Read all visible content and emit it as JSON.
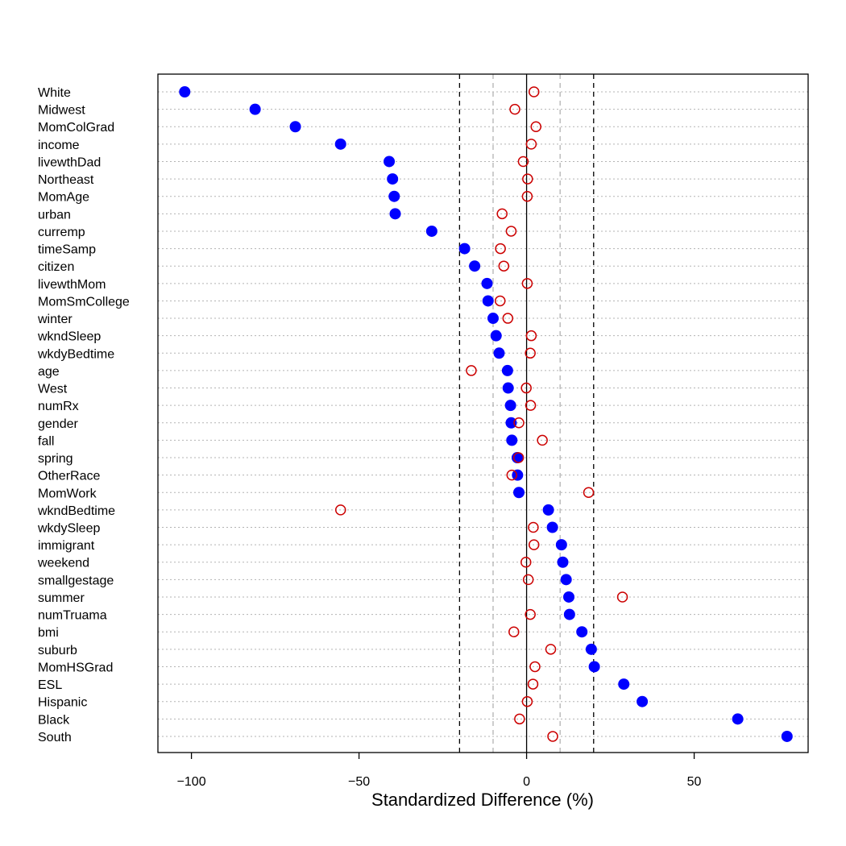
{
  "chart_data": {
    "type": "scatter",
    "xlabel": "Standardized Difference (%)",
    "xlim": [
      -110,
      84
    ],
    "x_ticks": [
      -100,
      -50,
      0,
      50
    ],
    "x_tick_labels": [
      "−100",
      "−50",
      "0",
      "50"
    ],
    "reference_lines": [
      {
        "x": 0,
        "style": "solid",
        "color": "#000000"
      },
      {
        "x": -20,
        "style": "dashed",
        "color": "#000000"
      },
      {
        "x": 20,
        "style": "dashed",
        "color": "#000000"
      },
      {
        "x": -10,
        "style": "dashed",
        "color": "#b3b3b3"
      },
      {
        "x": 10,
        "style": "dashed",
        "color": "#b3b3b3"
      }
    ],
    "grid": "horizontal dotted",
    "categories": [
      "White",
      "Midwest",
      "MomColGrad",
      "income",
      "livewthDad",
      "Northeast",
      "MomAge",
      "urban",
      "curremp",
      "timeSamp",
      "citizen",
      "livewthMom",
      "MomSmCollege",
      "winter",
      "wkndSleep",
      "wkdyBedtime",
      "age",
      "West",
      "numRx",
      "gender",
      "fall",
      "spring",
      "OtherRace",
      "MomWork",
      "wkndBedtime",
      "wkdySleep",
      "immigrant",
      "weekend",
      "smallgestage",
      "summer",
      "numTruama",
      "bmi",
      "suburb",
      "MomHSGrad",
      "ESL",
      "Hispanic",
      "Black",
      "South"
    ],
    "series": [
      {
        "marker": "filled-circle",
        "color": "#0000ff",
        "values": [
          -102,
          -81,
          -69,
          -55.5,
          -41,
          -40,
          -39.5,
          -39.2,
          -28.3,
          -18.5,
          -15.5,
          -11.8,
          -11.5,
          -10,
          -9.1,
          -8.2,
          -5.7,
          -5.5,
          -4.8,
          -4.6,
          -4.4,
          -2.8,
          -2.7,
          -2.3,
          6.5,
          7.7,
          10.4,
          10.8,
          11.8,
          12.6,
          12.8,
          16.5,
          19.3,
          20.2,
          29,
          34.5,
          63,
          77.7
        ]
      },
      {
        "marker": "open-circle",
        "color": "#cc0000",
        "values": [
          2.2,
          -3.5,
          2.8,
          1.4,
          -1,
          0.3,
          0.2,
          -7.3,
          -4.6,
          -7.8,
          -6.8,
          0.2,
          -7.9,
          -5.6,
          1.4,
          1.1,
          -16.5,
          -0.1,
          1.2,
          -2.3,
          4.7,
          -2.4,
          -4.4,
          18.5,
          -55.5,
          2,
          2.2,
          -0.2,
          0.5,
          28.6,
          1.1,
          -3.8,
          7.2,
          2.5,
          1.9,
          0.2,
          -2.1,
          7.8
        ]
      }
    ]
  }
}
